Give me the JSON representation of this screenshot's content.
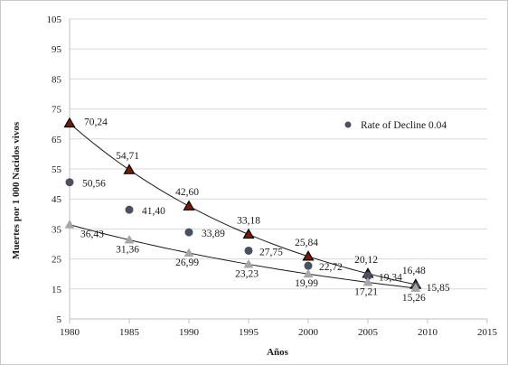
{
  "chart_data": {
    "type": "scatter",
    "title": "",
    "xlabel": "Años",
    "ylabel": "Muertes por 1 000 Nacidos vivos",
    "xlim": [
      1980,
      2015
    ],
    "ylim": [
      5,
      105
    ],
    "x_ticks": [
      "1980",
      "1985",
      "1990",
      "1995",
      "2000",
      "2005",
      "2010",
      "2015"
    ],
    "y_ticks": [
      "105",
      "95",
      "85",
      "75",
      "65",
      "55",
      "45",
      "35",
      "25",
      "15",
      "5"
    ],
    "grid": "horizontal",
    "legend_position": "right",
    "series": [
      {
        "key": "upper",
        "marker": "triangle",
        "color": "#000000",
        "fill": "#7a1a00",
        "x": [
          1980,
          1985,
          1990,
          1995,
          2000,
          2005,
          2009
        ],
        "y": [
          70.24,
          54.71,
          42.6,
          33.18,
          25.84,
          20.12,
          16.48
        ],
        "labels": [
          "70,24",
          "54,71",
          "42,60",
          "33,18",
          "25,84",
          "20,12",
          "16,48"
        ]
      },
      {
        "key": "middle",
        "name": "Rate of Decline 0.04",
        "marker": "circle",
        "color": "#4a5060",
        "x": [
          1980,
          1985,
          1990,
          1995,
          2000,
          2005,
          2009
        ],
        "y": [
          50.56,
          41.4,
          33.89,
          27.75,
          22.72,
          19.34,
          15.85
        ],
        "labels": [
          "50,56",
          "41,40",
          "33,89",
          "27,75",
          "22,72",
          "19,34",
          "15,85"
        ]
      },
      {
        "key": "lower",
        "marker": "triangle",
        "color": "#a6a6a6",
        "x": [
          1980,
          1985,
          1990,
          1995,
          2000,
          2005,
          2009
        ],
        "y": [
          36.43,
          31.36,
          26.99,
          23.23,
          19.99,
          17.21,
          15.26
        ],
        "labels": [
          "36,43",
          "31,36",
          "26,99",
          "23,23",
          "19,99",
          "17,21",
          "15,26"
        ]
      }
    ],
    "trendlines": [
      {
        "key": "upper-trend",
        "x": [
          1980,
          2009
        ],
        "y": [
          70.24,
          16.48
        ],
        "color": "#1a1a1a"
      },
      {
        "key": "lower-trend",
        "x": [
          1980,
          2009
        ],
        "y": [
          36.43,
          15.26
        ],
        "color": "#1a1a1a"
      }
    ]
  }
}
